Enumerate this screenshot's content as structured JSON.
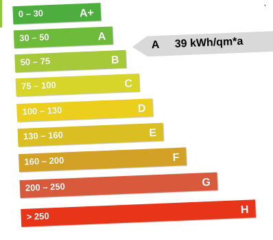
{
  "classes": [
    {
      "range": "0 – 30",
      "grade": "A+",
      "color": "#4cae3d"
    },
    {
      "range": "30 – 50",
      "grade": "A",
      "color": "#6ebb3b"
    },
    {
      "range": "50 – 75",
      "grade": "B",
      "color": "#a6c93a"
    },
    {
      "range": "75 – 100",
      "grade": "C",
      "color": "#d8d52a"
    },
    {
      "range": "100 – 130",
      "grade": "D",
      "color": "#eccf1c"
    },
    {
      "range": "130 – 160",
      "grade": "E",
      "color": "#dbbf22"
    },
    {
      "range": "160 – 200",
      "grade": "F",
      "color": "#d4a127"
    },
    {
      "range": "200 – 250",
      "grade": "G",
      "color": "#d9593c"
    },
    {
      "range": "> 250",
      "grade": "H",
      "color": "#e8351a"
    }
  ],
  "indicator": {
    "grade": "A",
    "value": "39 kWh/qm*a",
    "color": "#d9d9d9"
  }
}
